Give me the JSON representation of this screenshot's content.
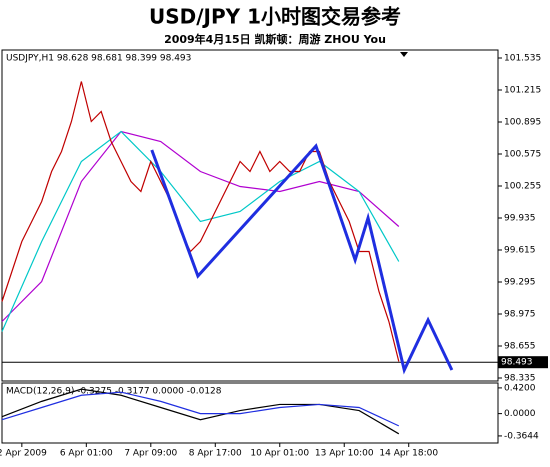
{
  "chart_data": [
    {
      "type": "line",
      "title": "USD/JPY 1小时图交易参考",
      "subtitle": "2009年4月15日  凯斯顿：周游 ZHOU You",
      "label": "USDJPY,H1  98.628 98.681 98.399 98.493",
      "last_price": 98.493,
      "xlim": [
        0,
        100
      ],
      "ylim": [
        98.305,
        101.615
      ],
      "yticks": [
        101.535,
        101.215,
        100.895,
        100.575,
        100.255,
        99.935,
        99.615,
        99.295,
        98.975,
        98.655,
        98.335
      ],
      "xticks": [
        {
          "value": 4,
          "label": "2 Apr 2009"
        },
        {
          "value": 17,
          "label": "6 Apr 01:00"
        },
        {
          "value": 30,
          "label": "7 Apr 09:00"
        },
        {
          "value": 43,
          "label": "8 Apr 17:00"
        },
        {
          "value": 56,
          "label": "10 Apr 01:00"
        },
        {
          "value": 69,
          "label": "13 Apr 10:00"
        },
        {
          "value": 82,
          "label": "14 Apr 18:00"
        }
      ],
      "series": [
        {
          "color": "#b000d0",
          "x": [
            0,
            8,
            16,
            24,
            32,
            40,
            48,
            56,
            64,
            72,
            80
          ],
          "values": [
            98.9,
            99.3,
            100.3,
            100.8,
            100.7,
            100.4,
            100.25,
            100.2,
            100.3,
            100.2,
            99.85
          ]
        },
        {
          "color": "#00c8c8",
          "x": [
            0,
            8,
            16,
            24,
            32,
            40,
            48,
            56,
            64,
            72,
            80
          ],
          "values": [
            98.8,
            99.7,
            100.5,
            100.8,
            100.4,
            99.9,
            100.0,
            100.3,
            100.5,
            100.2,
            99.5
          ]
        },
        {
          "color": "#c00000",
          "x": [
            0,
            2,
            4,
            6,
            8,
            10,
            12,
            14,
            16,
            18,
            20,
            22,
            24,
            26,
            28,
            30,
            32,
            34,
            36,
            38,
            40,
            42,
            44,
            46,
            48,
            50,
            52,
            54,
            56,
            58,
            60,
            62,
            64,
            66,
            68,
            70,
            72,
            74,
            76,
            78,
            80
          ],
          "values": [
            99.1,
            99.4,
            99.7,
            99.9,
            100.1,
            100.4,
            100.6,
            100.9,
            101.3,
            100.9,
            101.0,
            100.7,
            100.5,
            100.3,
            100.2,
            100.5,
            100.3,
            100.1,
            99.8,
            99.6,
            99.7,
            99.9,
            100.1,
            100.3,
            100.5,
            100.4,
            100.6,
            100.4,
            100.5,
            100.4,
            100.4,
            100.6,
            100.6,
            100.3,
            100.1,
            99.9,
            99.6,
            99.6,
            99.2,
            98.9,
            98.5
          ]
        },
        {
          "color": "#1f2ee0",
          "x": [
            30.2,
            39.5,
            63.3,
            71.2,
            73.8,
            81.1,
            85.9,
            90.7
          ],
          "values": [
            100.615,
            99.355,
            100.655,
            99.515,
            99.935,
            98.415,
            98.915,
            98.415
          ]
        }
      ]
    },
    {
      "type": "line",
      "label": "MACD(12,26,9) -0.3275 -0.3177 0.0000 -0.0128",
      "xlim": [
        0,
        100
      ],
      "ylim": [
        -0.48,
        0.5
      ],
      "yticks": [
        {
          "value": 0.42,
          "label": "0.4200"
        },
        {
          "value": 0,
          "label": "0.0000"
        },
        -0.3644
      ],
      "series": [
        {
          "color": "#000000",
          "x": [
            0,
            8,
            16,
            24,
            32,
            40,
            48,
            56,
            64,
            72,
            80
          ],
          "values": [
            -0.05,
            0.2,
            0.4,
            0.3,
            0.1,
            -0.1,
            0.05,
            0.15,
            0.15,
            0.05,
            -0.33
          ]
        },
        {
          "color": "#1f2ee0",
          "x": [
            0,
            8,
            16,
            24,
            32,
            40,
            48,
            56,
            64,
            72,
            80
          ],
          "values": [
            -0.1,
            0.1,
            0.3,
            0.35,
            0.2,
            0.0,
            0.0,
            0.1,
            0.15,
            0.1,
            -0.2
          ]
        }
      ]
    }
  ]
}
